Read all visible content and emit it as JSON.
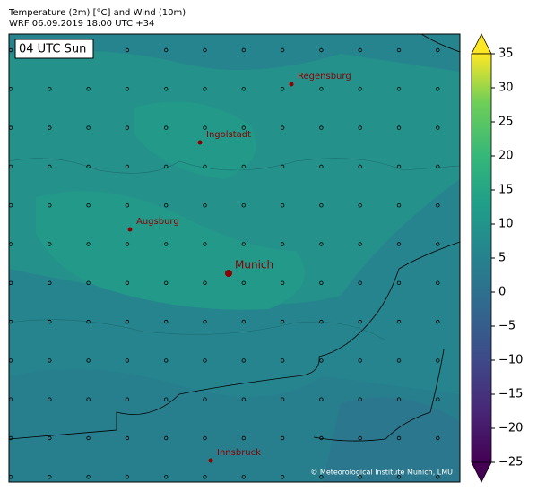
{
  "header": {
    "title": "Temperature (2m) [°C] and Wind (10m)",
    "subtitle": "WRF 06.09.2019 18:00 UTC +34"
  },
  "time_label": "04 UTC Sun",
  "cities": [
    "Regensburg",
    "Ingolstadt",
    "Augsburg",
    "Munich",
    "Innsbruck"
  ],
  "copyright": "© Meteorological Institute Munich, LMU",
  "colorbar": {
    "lim": [
      -25,
      35
    ],
    "ticks": [
      {
        "value": -25,
        "label": "−25"
      },
      {
        "value": -20,
        "label": "−20"
      },
      {
        "value": -15,
        "label": "−15"
      },
      {
        "value": -10,
        "label": "−10"
      },
      {
        "value": -5,
        "label": "−5"
      },
      0,
      5,
      10,
      15,
      20,
      25,
      30,
      35
    ]
  }
}
